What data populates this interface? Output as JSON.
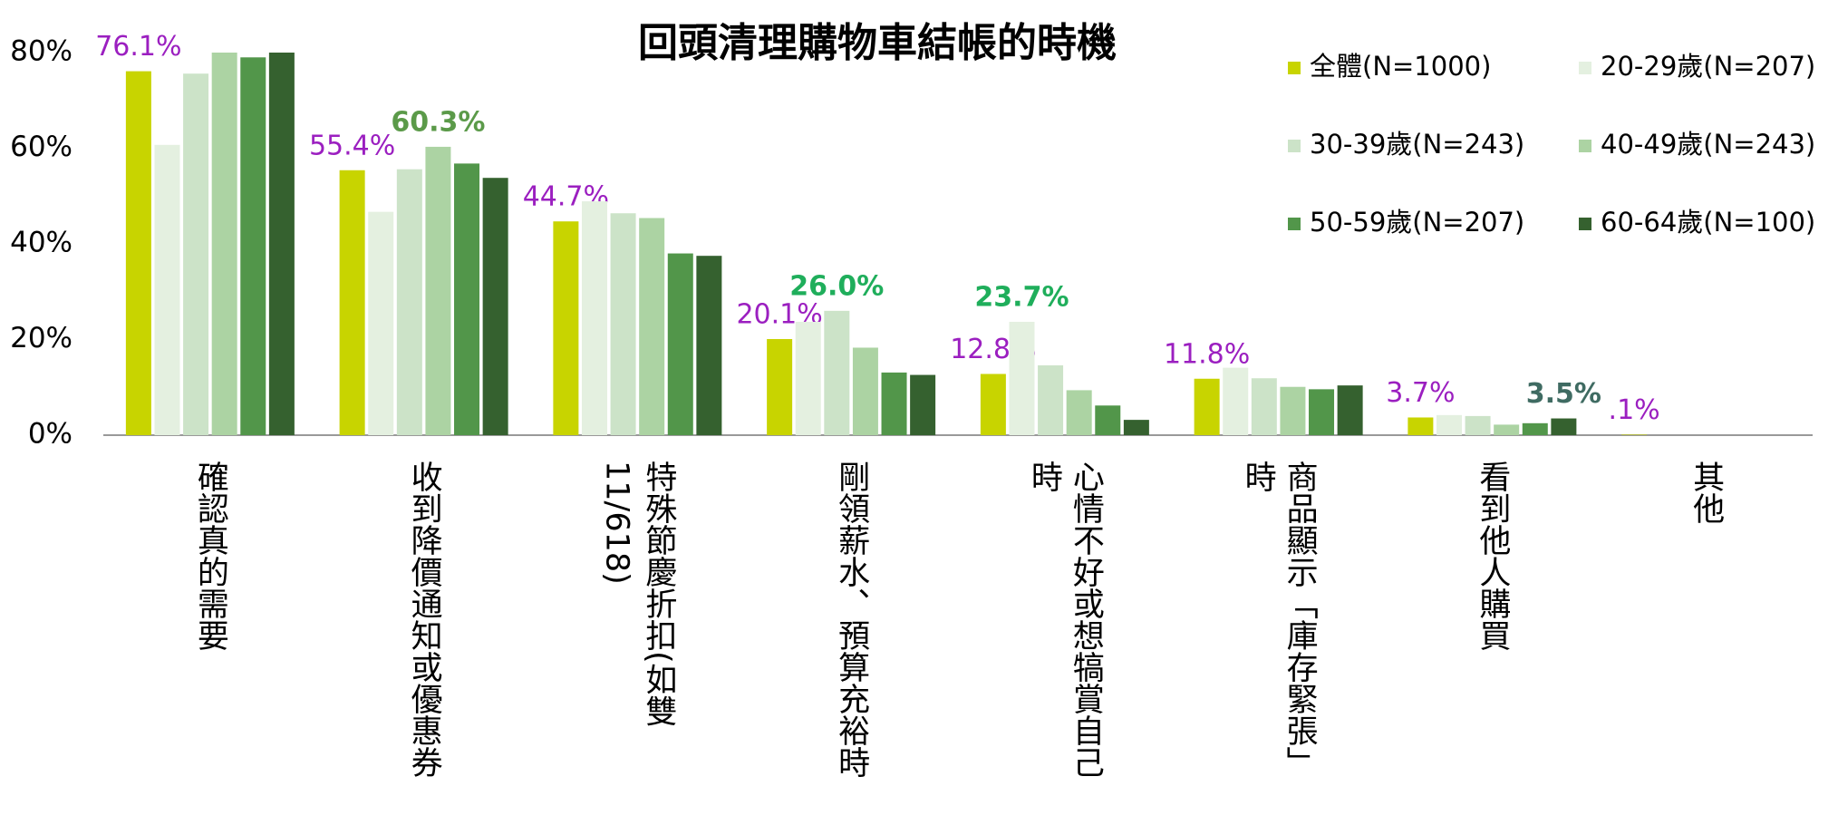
{
  "chart_data": {
    "type": "bar",
    "title": "回頭清理購物車結帳的時機",
    "categories": [
      "確認真的需要",
      "收到降價通知或優惠券",
      "特殊節慶折扣(如雙11/618)",
      "剛領薪水、預算充裕時",
      "心情不好或想犒賞自己時",
      "商品顯示「庫存緊張」時",
      "看到他人購買",
      "其他"
    ],
    "series": [
      {
        "name": "全體(N=1000)",
        "color": "#c8d400",
        "label_color": "#9b1fc0",
        "values": [
          76.1,
          55.4,
          44.7,
          20.1,
          12.8,
          11.8,
          3.7,
          0.1
        ],
        "value_labels": [
          "76.1%",
          "55.4%",
          "44.7%",
          "20.1%",
          "12.8%",
          "11.8%",
          "3.7%",
          ".1%"
        ]
      },
      {
        "name": "20-29歲(N=207)",
        "color": "#e4f0e0",
        "label_color": "#1fae5b",
        "values": [
          60.7,
          46.7,
          48.9,
          23.7,
          23.7,
          14.1,
          4.2,
          0
        ],
        "value_labels": [
          null,
          null,
          null,
          null,
          "23.7%",
          null,
          null,
          null
        ]
      },
      {
        "name": "30-39歲(N=243)",
        "color": "#cce3c8",
        "label_color": "#1fae5b",
        "values": [
          75.6,
          55.6,
          46.4,
          26.0,
          14.6,
          11.9,
          4.0,
          0
        ],
        "value_labels": [
          null,
          null,
          null,
          "26.0%",
          null,
          null,
          null,
          null
        ]
      },
      {
        "name": "40-49歲(N=243)",
        "color": "#acd3a3",
        "label_color": "#5b9a49",
        "values": [
          80,
          60.3,
          45.4,
          18.3,
          9.4,
          10.1,
          2.2,
          0
        ],
        "value_labels": [
          null,
          "60.3%",
          null,
          null,
          null,
          null,
          null,
          null
        ]
      },
      {
        "name": "50-59歲(N=207)",
        "color": "#52964a",
        "label_color": "#3f6b62",
        "values": [
          79,
          56.8,
          38,
          13.1,
          6.2,
          9.6,
          2.5,
          0
        ],
        "value_labels": [
          null,
          null,
          null,
          null,
          null,
          null,
          null,
          null
        ]
      },
      {
        "name": "60-64歲(N=100)",
        "color": "#35612f",
        "label_color": "#3f6b62",
        "values": [
          80,
          53.8,
          37.5,
          12.6,
          3.2,
          10.4,
          3.5,
          0
        ],
        "value_labels": [
          null,
          null,
          null,
          null,
          null,
          null,
          "3.5%",
          null
        ]
      }
    ],
    "ylim": [
      0,
      80
    ],
    "yticks": [
      {
        "value": 0,
        "label": "0%"
      },
      {
        "value": 20,
        "label": "20%"
      },
      {
        "value": 40,
        "label": "40%"
      },
      {
        "value": 60,
        "label": "60%"
      },
      {
        "value": 80,
        "label": "80%"
      }
    ],
    "grid": false
  }
}
